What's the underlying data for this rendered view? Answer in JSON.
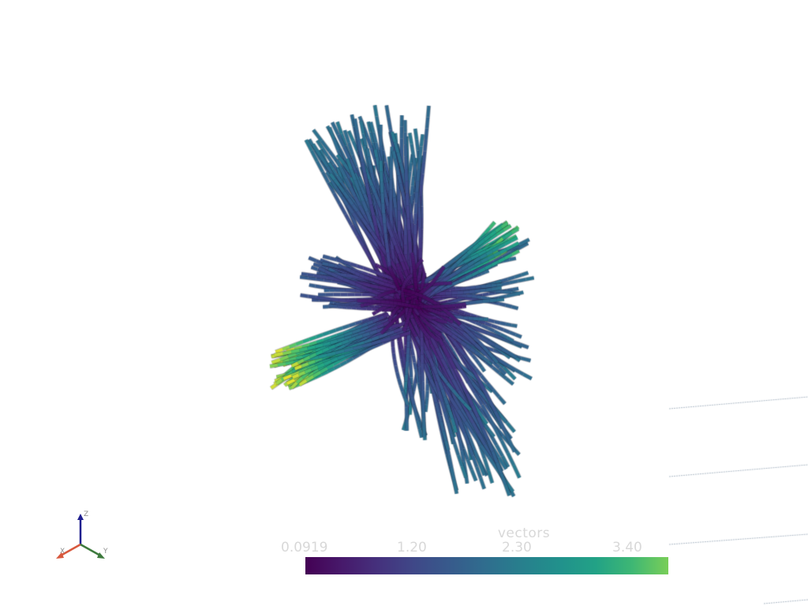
{
  "render_window": {
    "background": "#ffffff",
    "content": "streamlines"
  },
  "scalar_bar": {
    "title": "vectors",
    "ticks": [
      "0.0919",
      "1.20",
      "2.30",
      "3.40"
    ],
    "range": [
      0.0919,
      3.6
    ],
    "colormap": "viridis",
    "text_color": "#d8d8d8"
  },
  "axes": {
    "x_label": "X",
    "y_label": "Y",
    "z_label": "Z",
    "x_color": "#d8583d",
    "y_color": "#3d7a3d",
    "z_color": "#1f1f8f"
  }
}
